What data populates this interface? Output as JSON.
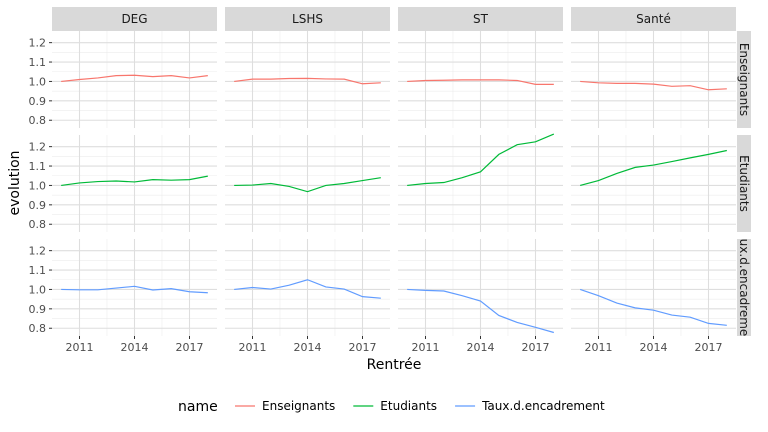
{
  "chart_data": {
    "type": "line",
    "xlabel": "Rentrée",
    "ylabel": "evolution",
    "x_breaks": [
      2011,
      2014,
      2017
    ],
    "y_breaks": [
      0.8,
      0.9,
      1.0,
      1.1,
      1.2
    ],
    "xlim": [
      2009.5,
      2018.5
    ],
    "ylim": [
      0.76,
      1.26
    ],
    "columns": [
      "DEG",
      "LSHS",
      "ST",
      "Santé"
    ],
    "rows": [
      "Enseignants",
      "Etudiants",
      "Taux.d.encadrement"
    ],
    "row_strip_labels": [
      "Enseignants",
      "Etudiants",
      "ux.d.encadreme"
    ],
    "legend": {
      "title": "name",
      "position": "bottom",
      "entries": [
        {
          "name": "Enseignants",
          "color": "#F8766D"
        },
        {
          "name": "Etudiants",
          "color": "#00BA38"
        },
        {
          "name": "Taux.d.encadrement",
          "color": "#619CFF"
        }
      ]
    },
    "x": [
      2010,
      2011,
      2012,
      2013,
      2014,
      2015,
      2016,
      2017,
      2018
    ],
    "series": {
      "Enseignants": {
        "DEG": [
          1.0,
          1.01,
          1.018,
          1.03,
          1.032,
          1.025,
          1.03,
          1.018,
          1.03
        ],
        "LSHS": [
          1.0,
          1.012,
          1.012,
          1.015,
          1.016,
          1.013,
          1.012,
          0.988,
          0.993
        ],
        "ST": [
          1.0,
          1.005,
          1.006,
          1.008,
          1.008,
          1.008,
          1.005,
          0.985,
          0.985
        ],
        "Santé": [
          1.0,
          0.993,
          0.99,
          0.99,
          0.986,
          0.975,
          0.978,
          0.957,
          0.962
        ]
      },
      "Etudiants": {
        "DEG": [
          1.0,
          1.013,
          1.02,
          1.023,
          1.018,
          1.03,
          1.027,
          1.03,
          1.048
        ],
        "LSHS": [
          1.0,
          1.002,
          1.01,
          0.995,
          0.968,
          1.0,
          1.01,
          1.025,
          1.04
        ],
        "ST": [
          1.0,
          1.01,
          1.015,
          1.04,
          1.07,
          1.16,
          1.21,
          1.225,
          1.265
        ],
        "Santé": [
          1.0,
          1.025,
          1.062,
          1.093,
          1.105,
          1.123,
          1.142,
          1.16,
          1.18
        ]
      },
      "Taux.d.encadrement": {
        "DEG": [
          1.0,
          0.998,
          0.998,
          1.007,
          1.016,
          0.997,
          1.004,
          0.988,
          0.983
        ],
        "LSHS": [
          1.0,
          1.01,
          1.002,
          1.022,
          1.05,
          1.013,
          1.002,
          0.963,
          0.955
        ],
        "ST": [
          1.0,
          0.995,
          0.992,
          0.968,
          0.94,
          0.866,
          0.83,
          0.805,
          0.778
        ],
        "Santé": [
          1.0,
          0.968,
          0.93,
          0.905,
          0.893,
          0.868,
          0.857,
          0.825,
          0.815
        ]
      }
    }
  }
}
